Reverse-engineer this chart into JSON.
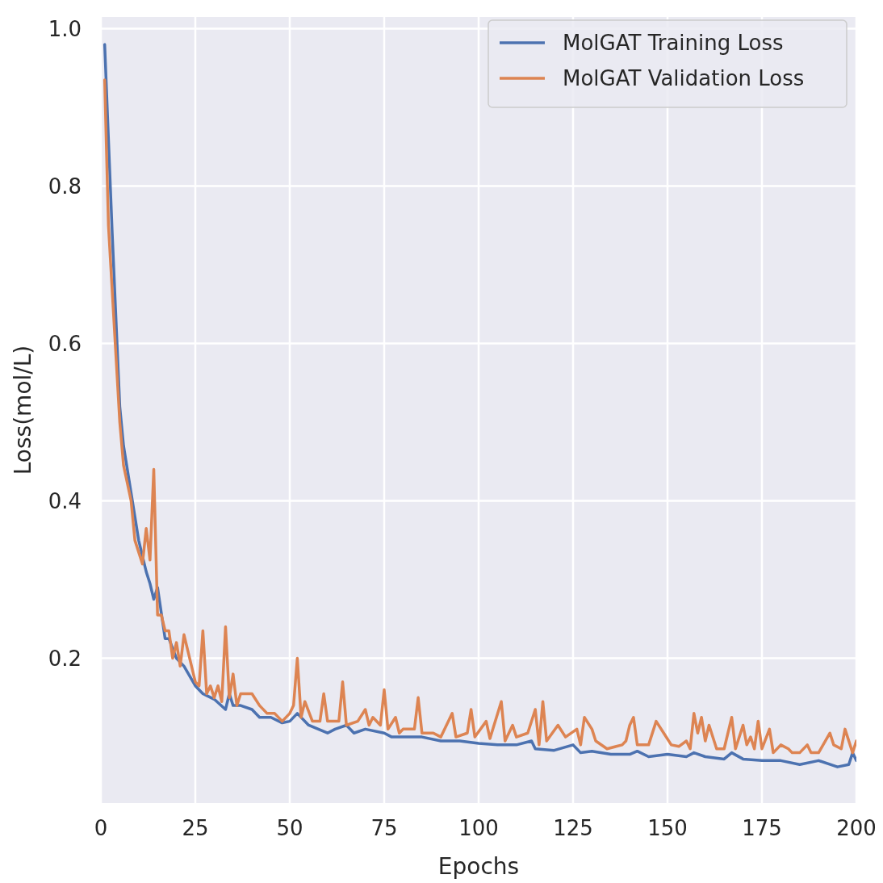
{
  "chart_data": {
    "type": "line",
    "xlabel": "Epochs",
    "ylabel": "Loss(mol/L)",
    "xlim": [
      0,
      200
    ],
    "ylim": [
      0.016,
      1.015
    ],
    "xticks": [
      0,
      25,
      50,
      75,
      100,
      125,
      150,
      175,
      200
    ],
    "yticks": [
      0.2,
      0.4,
      0.6,
      0.8,
      {
        "value": 1,
        "label": "1.0"
      }
    ],
    "grid": true,
    "legend": "top right",
    "line_style": "solid",
    "marker": "none",
    "series": [
      {
        "name": "MolGAT Training Loss",
        "color": "#4c72b0",
        "x": [
          1,
          3,
          5,
          6,
          8,
          10,
          12,
          13,
          14,
          15,
          17,
          18,
          20,
          22,
          25,
          27,
          30,
          33,
          34,
          35,
          37,
          40,
          42,
          45,
          48,
          50,
          52,
          55,
          60,
          62,
          65,
          67,
          70,
          75,
          77,
          80,
          85,
          90,
          95,
          100,
          105,
          110,
          114,
          115,
          120,
          125,
          127,
          130,
          135,
          140,
          142,
          145,
          150,
          155,
          157,
          160,
          165,
          167,
          170,
          175,
          180,
          185,
          190,
          195,
          198,
          199,
          200
        ],
        "values": [
          0.98,
          0.74,
          0.52,
          0.47,
          0.41,
          0.35,
          0.31,
          0.295,
          0.275,
          0.29,
          0.225,
          0.225,
          0.2,
          0.19,
          0.165,
          0.155,
          0.148,
          0.135,
          0.155,
          0.14,
          0.14,
          0.135,
          0.125,
          0.125,
          0.118,
          0.12,
          0.13,
          0.115,
          0.105,
          0.11,
          0.115,
          0.105,
          0.11,
          0.105,
          0.1,
          0.1,
          0.1,
          0.095,
          0.095,
          0.092,
          0.09,
          0.09,
          0.095,
          0.085,
          0.083,
          0.09,
          0.08,
          0.082,
          0.078,
          0.078,
          0.082,
          0.075,
          0.078,
          0.075,
          0.08,
          0.075,
          0.072,
          0.08,
          0.072,
          0.07,
          0.07,
          0.065,
          0.07,
          0.062,
          0.065,
          0.08,
          0.07
        ]
      },
      {
        "name": "MolGAT Validation Loss",
        "color": "#dd8452",
        "x": [
          1,
          2,
          5,
          6,
          8,
          9,
          11,
          12,
          13,
          14,
          15,
          16,
          17,
          18,
          19,
          20,
          21,
          22,
          23,
          25,
          26,
          27,
          28,
          29,
          30,
          31,
          32,
          33,
          34,
          35,
          36,
          37,
          40,
          42,
          44,
          46,
          48,
          50,
          51,
          52,
          53,
          54,
          56,
          58,
          59,
          60,
          63,
          64,
          65,
          68,
          70,
          71,
          72,
          74,
          75,
          76,
          78,
          79,
          80,
          83,
          84,
          85,
          88,
          90,
          93,
          94,
          97,
          98,
          99,
          102,
          103,
          106,
          107,
          109,
          110,
          113,
          115,
          116,
          117,
          118,
          121,
          123,
          126,
          127,
          128,
          130,
          131,
          134,
          138,
          139,
          140,
          141,
          142,
          145,
          147,
          149,
          151,
          153,
          155,
          156,
          157,
          158,
          159,
          160,
          161,
          163,
          165,
          167,
          168,
          170,
          171,
          172,
          173,
          174,
          175,
          177,
          178,
          180,
          182,
          183,
          185,
          187,
          188,
          190,
          193,
          194,
          196,
          197,
          199,
          200
        ],
        "values": [
          0.935,
          0.75,
          0.5,
          0.445,
          0.4,
          0.35,
          0.32,
          0.365,
          0.325,
          0.44,
          0.255,
          0.255,
          0.235,
          0.235,
          0.2,
          0.22,
          0.19,
          0.23,
          0.21,
          0.17,
          0.165,
          0.235,
          0.155,
          0.165,
          0.15,
          0.165,
          0.145,
          0.24,
          0.15,
          0.18,
          0.14,
          0.155,
          0.155,
          0.14,
          0.13,
          0.13,
          0.12,
          0.13,
          0.14,
          0.2,
          0.125,
          0.145,
          0.12,
          0.12,
          0.155,
          0.12,
          0.12,
          0.17,
          0.115,
          0.12,
          0.135,
          0.115,
          0.125,
          0.115,
          0.16,
          0.11,
          0.125,
          0.105,
          0.11,
          0.11,
          0.15,
          0.105,
          0.105,
          0.1,
          0.13,
          0.1,
          0.105,
          0.135,
          0.1,
          0.12,
          0.098,
          0.145,
          0.095,
          0.115,
          0.1,
          0.105,
          0.135,
          0.09,
          0.145,
          0.095,
          0.115,
          0.1,
          0.11,
          0.09,
          0.125,
          0.11,
          0.095,
          0.085,
          0.09,
          0.095,
          0.115,
          0.125,
          0.09,
          0.09,
          0.12,
          0.105,
          0.09,
          0.088,
          0.095,
          0.085,
          0.13,
          0.105,
          0.125,
          0.095,
          0.115,
          0.085,
          0.085,
          0.125,
          0.085,
          0.115,
          0.09,
          0.1,
          0.085,
          0.12,
          0.085,
          0.11,
          0.08,
          0.09,
          0.085,
          0.08,
          0.08,
          0.09,
          0.08,
          0.08,
          0.105,
          0.09,
          0.085,
          0.11,
          0.08,
          0.095
        ]
      }
    ]
  }
}
